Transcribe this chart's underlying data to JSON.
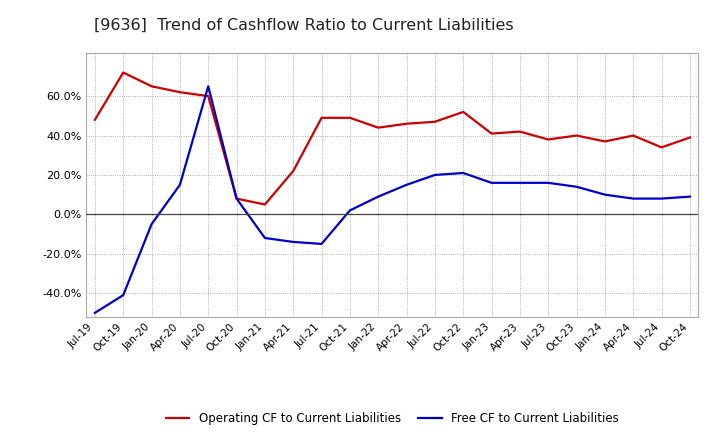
{
  "title": "[9636]  Trend of Cashflow Ratio to Current Liabilities",
  "title_fontsize": 11.5,
  "background_color": "#ffffff",
  "plot_bg_color": "#ffffff",
  "grid_color": "#999999",
  "x_labels": [
    "Jul-19",
    "Oct-19",
    "Jan-20",
    "Apr-20",
    "Jul-20",
    "Oct-20",
    "Jan-21",
    "Apr-21",
    "Jul-21",
    "Oct-21",
    "Jan-22",
    "Apr-22",
    "Jul-22",
    "Oct-22",
    "Jan-23",
    "Apr-23",
    "Jul-23",
    "Oct-23",
    "Jan-24",
    "Apr-24",
    "Jul-24",
    "Oct-24"
  ],
  "operating_cf": [
    0.48,
    0.72,
    0.65,
    0.62,
    0.6,
    0.08,
    0.05,
    0.22,
    0.49,
    0.49,
    0.44,
    0.46,
    0.47,
    0.52,
    0.41,
    0.42,
    0.38,
    0.4,
    0.37,
    0.4,
    0.34,
    0.39
  ],
  "free_cf": [
    -0.5,
    -0.41,
    -0.05,
    0.15,
    0.65,
    0.08,
    -0.12,
    -0.14,
    -0.15,
    0.02,
    0.09,
    0.15,
    0.2,
    0.21,
    0.16,
    0.16,
    0.16,
    0.14,
    0.1,
    0.08,
    0.08,
    0.09
  ],
  "ylim": [
    -0.52,
    0.82
  ],
  "yticks": [
    -0.4,
    -0.2,
    0.0,
    0.2,
    0.4,
    0.6
  ],
  "operating_color": "#cc0000",
  "free_color": "#0000cc",
  "legend_labels": [
    "Operating CF to Current Liabilities",
    "Free CF to Current Liabilities"
  ],
  "linewidth": 1.6
}
